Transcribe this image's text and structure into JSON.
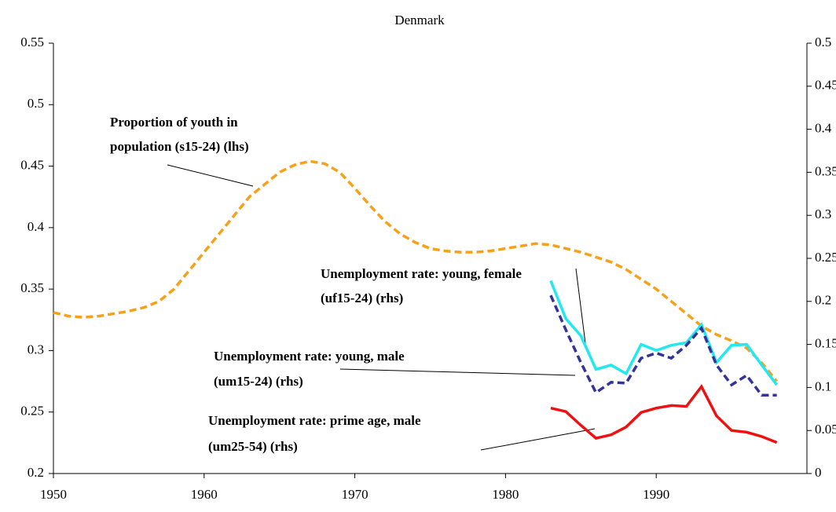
{
  "chart_data": {
    "type": "line",
    "title": "Denmark",
    "xlim": [
      1950,
      2000
    ],
    "xticks": [
      1950,
      1960,
      1970,
      1980,
      1990
    ],
    "ylim": [
      0.2,
      0.55
    ],
    "yticks": [
      0.2,
      0.25,
      0.3,
      0.35,
      0.4,
      0.45,
      0.5,
      0.55
    ],
    "y2lim": [
      0,
      0.5
    ],
    "y2ticks": [
      0,
      0.05,
      0.1,
      0.15,
      0.2,
      0.25,
      0.3,
      0.35,
      0.4,
      0.45,
      0.5
    ],
    "series": [
      {
        "name": "Proportion of youth in population (s15-24) (lhs)",
        "color": "#f7a11a",
        "dash": true,
        "axis": "y",
        "x": [
          1950,
          1951,
          1952,
          1953,
          1954,
          1955,
          1956,
          1957,
          1958,
          1959,
          1960,
          1961,
          1962,
          1963,
          1964,
          1965,
          1966,
          1967,
          1968,
          1969,
          1970,
          1971,
          1972,
          1973,
          1974,
          1975,
          1976,
          1977,
          1978,
          1979,
          1980,
          1981,
          1982,
          1983,
          1984,
          1985,
          1986,
          1987,
          1988,
          1989,
          1990,
          1991,
          1992,
          1993,
          1994,
          1995,
          1996,
          1997,
          1998
        ],
        "values": [
          0.331,
          0.328,
          0.327,
          0.328,
          0.33,
          0.332,
          0.335,
          0.34,
          0.35,
          0.365,
          0.38,
          0.395,
          0.41,
          0.425,
          0.435,
          0.445,
          0.451,
          0.454,
          0.452,
          0.445,
          0.432,
          0.418,
          0.405,
          0.395,
          0.388,
          0.383,
          0.381,
          0.38,
          0.38,
          0.381,
          0.383,
          0.385,
          0.387,
          0.386,
          0.383,
          0.38,
          0.376,
          0.372,
          0.366,
          0.358,
          0.35,
          0.34,
          0.33,
          0.32,
          0.313,
          0.308,
          0.302,
          0.29,
          0.275
        ]
      },
      {
        "name": "Unemployment rate: young, female (uf15-24) (rhs)",
        "color": "#22e8f0",
        "dash": false,
        "axis": "y2",
        "x": [
          1983,
          1984,
          1985,
          1986,
          1987,
          1988,
          1989,
          1990,
          1991,
          1992,
          1993,
          1994,
          1995,
          1996,
          1997,
          1998
        ],
        "values": [
          0.224,
          0.18,
          0.16,
          0.121,
          0.126,
          0.116,
          0.15,
          0.143,
          0.149,
          0.152,
          0.173,
          0.129,
          0.149,
          0.15,
          0.126,
          0.103
        ]
      },
      {
        "name": "Unemployment rate: young, male (um15-24) (rhs)",
        "color": "#333399",
        "dash": true,
        "axis": "y2",
        "x": [
          1983,
          1984,
          1985,
          1986,
          1987,
          1988,
          1989,
          1990,
          1991,
          1992,
          1993,
          1994,
          1995,
          1996,
          1997,
          1998
        ],
        "values": [
          0.207,
          0.167,
          0.129,
          0.094,
          0.106,
          0.105,
          0.134,
          0.14,
          0.134,
          0.149,
          0.169,
          0.126,
          0.103,
          0.114,
          0.091,
          0.091
        ]
      },
      {
        "name": "Unemployment rate: prime age, male (um25-54) (rhs)",
        "color": "#ee1111",
        "dash": false,
        "axis": "y2",
        "x": [
          1983,
          1984,
          1985,
          1986,
          1987,
          1988,
          1989,
          1990,
          1991,
          1992,
          1993,
          1994,
          1995,
          1996,
          1997,
          1998
        ],
        "values": [
          0.076,
          0.072,
          0.056,
          0.041,
          0.045,
          0.054,
          0.071,
          0.076,
          0.079,
          0.078,
          0.101,
          0.067,
          0.05,
          0.048,
          0.043,
          0.036
        ]
      }
    ],
    "annotations": [
      {
        "lines": [
          "Proportion of youth in",
          "population (s15-24) (lhs)"
        ]
      },
      {
        "lines": [
          "Unemployment rate: young, female",
          "(uf15-24) (rhs)"
        ]
      },
      {
        "lines": [
          "Unemployment rate: young, male",
          "(um15-24) (rhs)"
        ]
      },
      {
        "lines": [
          "Unemployment rate: prime age, male",
          "(um25-54) (rhs)"
        ]
      }
    ]
  }
}
